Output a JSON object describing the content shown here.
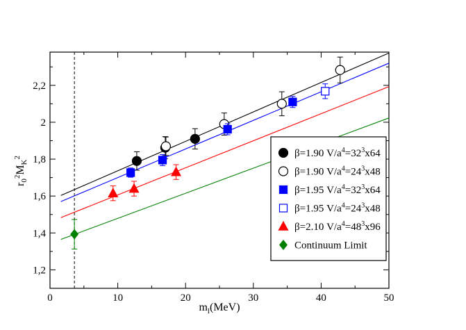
{
  "chart_data": {
    "type": "scatter",
    "title": "",
    "xlabel": "m",
    "xlabel_sub": "l",
    "xlabel_unit": "(MeV)",
    "ylabel_parts": [
      "r",
      "0",
      "2",
      "M",
      "K",
      "2"
    ],
    "xlim": [
      0,
      50
    ],
    "ylim": [
      1.1,
      2.38
    ],
    "xticks": [
      0,
      10,
      20,
      30,
      40,
      50
    ],
    "xtick_labels": [
      "0",
      "10",
      "20",
      "30",
      "40",
      "50"
    ],
    "yticks": [
      1.2,
      1.4,
      1.6,
      1.8,
      2.0,
      2.2
    ],
    "ytick_labels": [
      "1,2",
      "1,4",
      "1,6",
      "1,8",
      "2",
      "2,2"
    ],
    "vline_x": 3.6,
    "legend_position": "right",
    "series": [
      {
        "name": "β=1.90 V/a⁴=32³x64",
        "beta": "β=1.90",
        "vol_pre": "V/a",
        "vol_exp": "4",
        "vol_mid": "=32",
        "vol_mid_exp": "3",
        "vol_post": "x64",
        "marker": "circle",
        "filled": true,
        "color": "#000000",
        "points": [
          {
            "x": 12.8,
            "y": 1.79,
            "err": 0.05
          },
          {
            "x": 17.0,
            "y": 1.862,
            "err": 0.06
          },
          {
            "x": 21.4,
            "y": 1.91,
            "err": 0.055
          }
        ]
      },
      {
        "name": "β=1.90 V/a⁴=24³x48",
        "beta": "β=1.90",
        "vol_pre": "V/a",
        "vol_exp": "4",
        "vol_mid": "=24",
        "vol_mid_exp": "3",
        "vol_post": "x48",
        "marker": "circle",
        "filled": false,
        "color": "#000000",
        "points": [
          {
            "x": 17.1,
            "y": 1.87,
            "err": 0.05
          },
          {
            "x": 25.7,
            "y": 1.99,
            "err": 0.06
          },
          {
            "x": 34.2,
            "y": 2.1,
            "err": 0.065
          },
          {
            "x": 42.8,
            "y": 2.283,
            "err": 0.07
          }
        ]
      },
      {
        "name": "β=1.95 V/a⁴=32³x64",
        "beta": "β=1.95",
        "vol_pre": "V/a",
        "vol_exp": "4",
        "vol_mid": "=32",
        "vol_mid_exp": "3",
        "vol_post": "x64",
        "marker": "square",
        "filled": true,
        "color": "#0000ff",
        "points": [
          {
            "x": 11.9,
            "y": 1.727,
            "err": 0.025
          },
          {
            "x": 16.6,
            "y": 1.795,
            "err": 0.03
          },
          {
            "x": 26.2,
            "y": 1.962,
            "err": 0.03
          },
          {
            "x": 35.8,
            "y": 2.11,
            "err": 0.03
          }
        ]
      },
      {
        "name": "β=1.95 V/a⁴=24³x48",
        "beta": "β=1.95",
        "vol_pre": "V/a",
        "vol_exp": "4",
        "vol_mid": "=24",
        "vol_mid_exp": "3",
        "vol_post": "x48",
        "marker": "square",
        "filled": false,
        "color": "#0000ff",
        "points": [
          {
            "x": 40.6,
            "y": 2.168,
            "err": 0.04
          }
        ]
      },
      {
        "name": "β=2.10 V/a⁴=48³x96",
        "beta": "β=2.10",
        "vol_pre": "V/a",
        "vol_exp": "4",
        "vol_mid": "=48",
        "vol_mid_exp": "3",
        "vol_post": "x96",
        "marker": "triangle",
        "filled": true,
        "color": "#ff0000",
        "points": [
          {
            "x": 9.3,
            "y": 1.615,
            "err": 0.04
          },
          {
            "x": 12.4,
            "y": 1.64,
            "err": 0.04
          },
          {
            "x": 18.6,
            "y": 1.73,
            "err": 0.04
          }
        ]
      },
      {
        "name": "Continuum Limit",
        "label": "Continuum Limit",
        "marker": "diamond",
        "filled": true,
        "color": "#008000",
        "points": [
          {
            "x": 3.6,
            "y": 1.393,
            "err": 0.08
          }
        ]
      }
    ],
    "fit_lines": [
      {
        "color": "#000000",
        "x": [
          1.6,
          50
        ],
        "y": [
          1.603,
          2.375
        ]
      },
      {
        "color": "#0000ff",
        "x": [
          1.6,
          50
        ],
        "y": [
          1.57,
          2.32
        ]
      },
      {
        "color": "#ff0000",
        "x": [
          1.6,
          50
        ],
        "y": [
          1.483,
          2.193
        ]
      },
      {
        "color": "#008000",
        "x": [
          1.6,
          50
        ],
        "y": [
          1.365,
          2.023
        ]
      }
    ]
  }
}
